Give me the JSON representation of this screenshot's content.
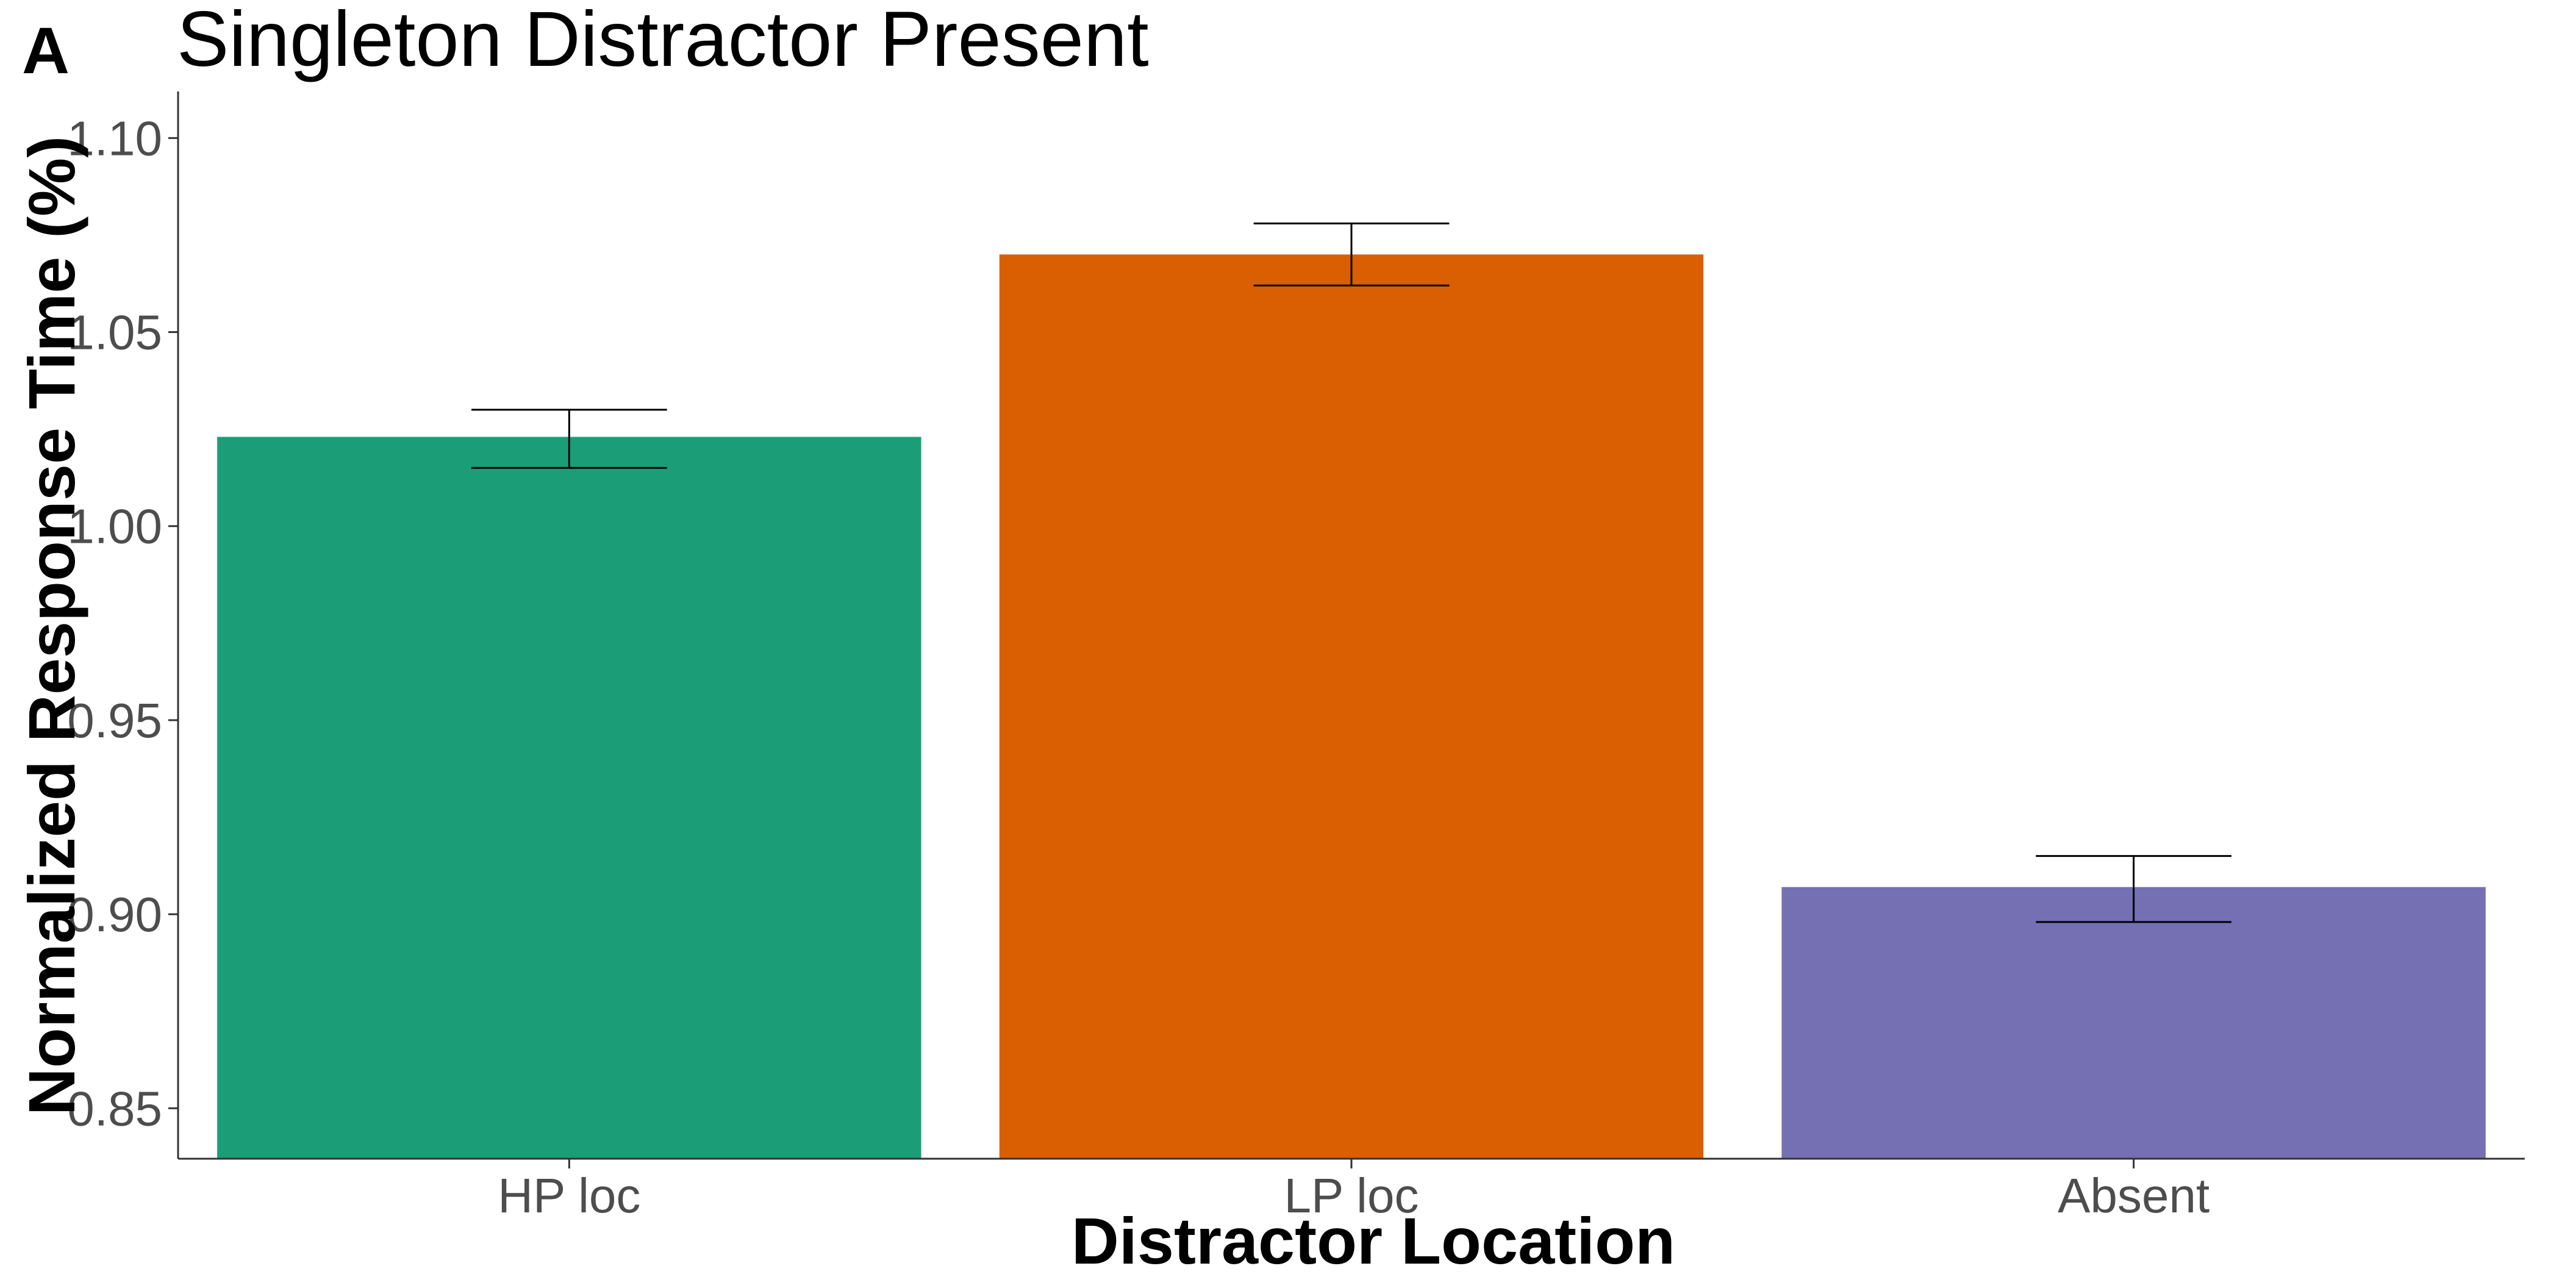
{
  "panel_label": "A",
  "chart_data": {
    "type": "bar",
    "title": "Singleton Distractor Present",
    "xlabel": "Distractor Location",
    "ylabel": "Normalized Response Time (%)",
    "categories": [
      "HP loc",
      "LP loc",
      "Absent"
    ],
    "values": [
      1.023,
      1.07,
      0.907
    ],
    "error": [
      {
        "low": 1.015,
        "high": 1.03
      },
      {
        "low": 1.062,
        "high": 1.078
      },
      {
        "low": 0.898,
        "high": 0.915
      }
    ],
    "colors": [
      "#1b9e77",
      "#d95f02",
      "#7570b3"
    ],
    "ylim": [
      0.837,
      1.112
    ],
    "yticks": [
      0.85,
      0.9,
      0.95,
      1.0,
      1.05,
      1.1
    ],
    "ytick_labels": [
      "0.85",
      "0.90",
      "0.95",
      "1.00",
      "1.05",
      "1.10"
    ],
    "grid": false,
    "legend": "none"
  }
}
